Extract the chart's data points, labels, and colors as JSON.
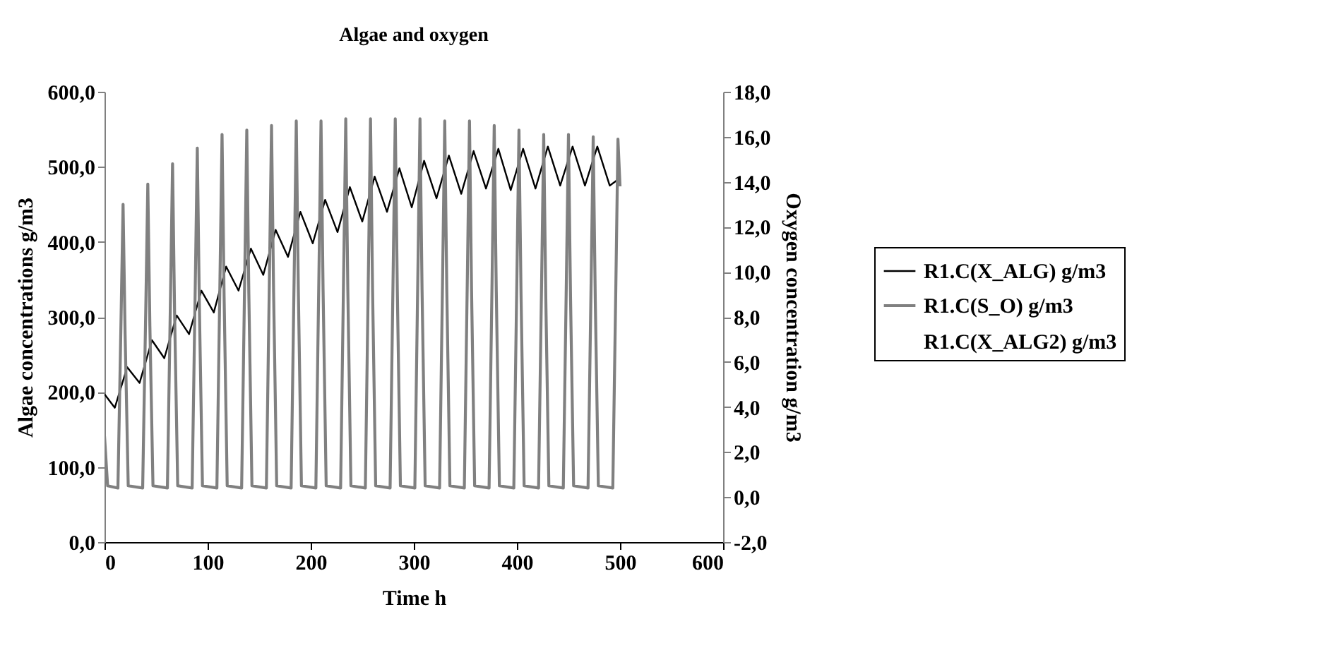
{
  "chart_data": {
    "type": "line",
    "title": "Algae and oxygen",
    "xlabel": "Time h",
    "ylabel": "Algae concentrations g/m3",
    "y2label": "Oxygen concentration g/m3",
    "xlim": [
      0,
      600
    ],
    "xticks": [
      0,
      100,
      200,
      300,
      400,
      500,
      600
    ],
    "ylim": [
      0,
      600
    ],
    "yticks": [
      {
        "value": 0,
        "label": "0,0"
      },
      {
        "value": 100,
        "label": "100,0"
      },
      {
        "value": 200,
        "label": "200,0"
      },
      {
        "value": 300,
        "label": "300,0"
      },
      {
        "value": 400,
        "label": "400,0"
      },
      {
        "value": 500,
        "label": "500,0"
      },
      {
        "value": 600,
        "label": "600,0"
      }
    ],
    "y2lim": [
      -2,
      18
    ],
    "y2ticks": [
      {
        "value": -2,
        "label": "-2,0"
      },
      {
        "value": 0,
        "label": "0,0"
      },
      {
        "value": 2,
        "label": "2,0"
      },
      {
        "value": 4,
        "label": "4,0"
      },
      {
        "value": 6,
        "label": "6,0"
      },
      {
        "value": 8,
        "label": "8,0"
      },
      {
        "value": 10,
        "label": "10,0"
      },
      {
        "value": 12,
        "label": "12,0"
      },
      {
        "value": 14,
        "label": "14,0"
      },
      {
        "value": 16,
        "label": "16,0"
      },
      {
        "value": 18,
        "label": "18,0"
      }
    ],
    "grid": false,
    "legend": "right",
    "marker": "none",
    "line_style": "solid",
    "series": [
      {
        "name": "R1.C(X_ALG) g/m3",
        "color": "#000000",
        "x": [
          0,
          10,
          22,
          34,
          46,
          58,
          70,
          82,
          94,
          106,
          118,
          130,
          142,
          154,
          166,
          178,
          190,
          202,
          214,
          226,
          238,
          250,
          262,
          274,
          286,
          298,
          310,
          322,
          334,
          346,
          358,
          370,
          382,
          394,
          406,
          418,
          430,
          442,
          454,
          466,
          478,
          490,
          500
        ],
        "values": [
          197,
          179,
          233,
          212,
          269,
          245,
          302,
          277,
          335,
          306,
          367,
          335,
          391,
          356,
          416,
          380,
          440,
          398,
          456,
          413,
          473,
          427,
          487,
          440,
          498,
          446,
          508,
          458,
          515,
          464,
          521,
          471,
          524,
          469,
          524,
          471,
          527,
          475,
          527,
          475,
          527,
          475,
          485
        ]
      },
      {
        "name": "R1.C(S_O) g/m3",
        "color": "#808080",
        "axis": "y2",
        "x": [
          0,
          3,
          13,
          16,
          18,
          20,
          23,
          37,
          40,
          42,
          44,
          47,
          61,
          64,
          66,
          68,
          71,
          85,
          88,
          90,
          92,
          95,
          109,
          112,
          114,
          116,
          119,
          133,
          136,
          138,
          140,
          143,
          157,
          160,
          162,
          164,
          167,
          181,
          184,
          186,
          188,
          191,
          205,
          208,
          210,
          212,
          215,
          229,
          232,
          234,
          236,
          239,
          253,
          256,
          258,
          260,
          263,
          277,
          280,
          282,
          284,
          287,
          301,
          304,
          306,
          308,
          311,
          325,
          328,
          330,
          332,
          335,
          349,
          352,
          354,
          356,
          359,
          373,
          376,
          378,
          380,
          383,
          397,
          400,
          402,
          404,
          407,
          421,
          424,
          426,
          428,
          431,
          445,
          448,
          450,
          452,
          455,
          469,
          472,
          474,
          476,
          479,
          493,
          496,
          498,
          500
        ],
        "values": [
          2.7,
          0.5,
          0.4,
          7.8,
          13.0,
          7.2,
          0.5,
          0.4,
          8.3,
          13.9,
          7.6,
          0.5,
          0.4,
          8.9,
          14.8,
          8.1,
          0.5,
          0.4,
          9.3,
          15.5,
          8.5,
          0.5,
          0.4,
          9.7,
          16.1,
          8.9,
          0.5,
          0.4,
          9.8,
          16.3,
          9.0,
          0.5,
          0.4,
          9.9,
          16.5,
          9.1,
          0.5,
          0.4,
          10.0,
          16.7,
          9.2,
          0.5,
          0.4,
          10.0,
          16.7,
          9.2,
          0.5,
          0.4,
          10.1,
          16.8,
          9.2,
          0.5,
          0.4,
          10.1,
          16.8,
          9.2,
          0.5,
          0.4,
          10.1,
          16.8,
          9.2,
          0.5,
          0.4,
          10.1,
          16.8,
          9.2,
          0.5,
          0.4,
          10.0,
          16.7,
          9.2,
          0.5,
          0.4,
          10.0,
          16.7,
          9.2,
          0.5,
          0.4,
          9.9,
          16.5,
          9.1,
          0.5,
          0.4,
          9.8,
          16.3,
          9.0,
          0.5,
          0.4,
          9.7,
          16.1,
          8.9,
          0.5,
          0.4,
          9.7,
          16.1,
          8.9,
          0.5,
          0.4,
          9.6,
          16.0,
          8.8,
          0.5,
          0.4,
          9.5,
          15.9,
          13.8
        ]
      },
      {
        "name": "R1.C(X_ALG2) g/m3"
      }
    ]
  }
}
